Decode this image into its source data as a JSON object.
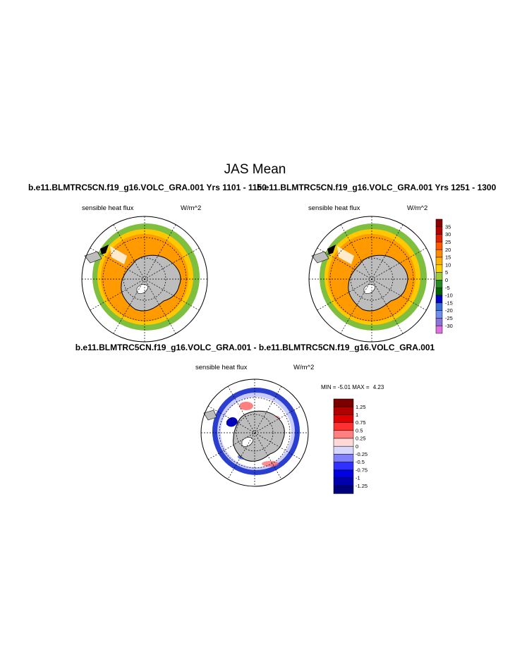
{
  "page": {
    "title": "JAS Mean"
  },
  "panels": [
    {
      "run_title": "b.e11.BLMTRC5CN.f19_g16.VOLC_GRA.001  Yrs 1101 - 1150",
      "variable": "sensible heat flux",
      "units": "W/m^2"
    },
    {
      "run_title": "b.e11.BLMTRC5CN.f19_g16.VOLC_GRA.001  Yrs 1251 - 1300",
      "variable": "sensible heat flux",
      "units": "W/m^2"
    }
  ],
  "difference": {
    "title": "b.e11.BLMTRC5CN.f19_g16.VOLC_GRA.001 - b.e11.BLMTRC5CN.f19_g16.VOLC_GRA.001",
    "variable": "sensible heat flux",
    "units": "W/m^2",
    "min_label": "MIN =",
    "min_value": "-5.01",
    "max_label": "MAX =",
    "max_value": "4.23"
  },
  "colorbar_top": {
    "labels": [
      "35",
      "30",
      "25",
      "20",
      "15",
      "10",
      "5",
      "0",
      "-5",
      "-10",
      "-15",
      "-20",
      "-25",
      "-30"
    ],
    "colors": [
      "#8b0000",
      "#b40000",
      "#e02000",
      "#ff5a00",
      "#ff8c00",
      "#ffb000",
      "#ffd000",
      "#9acd32",
      "#228b22",
      "#006400",
      "#0000cd",
      "#3a6fd8",
      "#6f8ff0",
      "#8a74d8",
      "#e070e0"
    ]
  },
  "colorbar_diff": {
    "labels": [
      "1.25",
      "1",
      "0.75",
      "0.5",
      "0.25",
      "0",
      "-0.25",
      "-0.5",
      "-0.75",
      "-1",
      "-1.25"
    ],
    "colors": [
      "#7a0000",
      "#b00000",
      "#e00000",
      "#ff3030",
      "#ff8080",
      "#ffd8d8",
      "#d8d8ff",
      "#8080ff",
      "#3030ff",
      "#0000e0",
      "#0000b0",
      "#00007a"
    ]
  }
}
